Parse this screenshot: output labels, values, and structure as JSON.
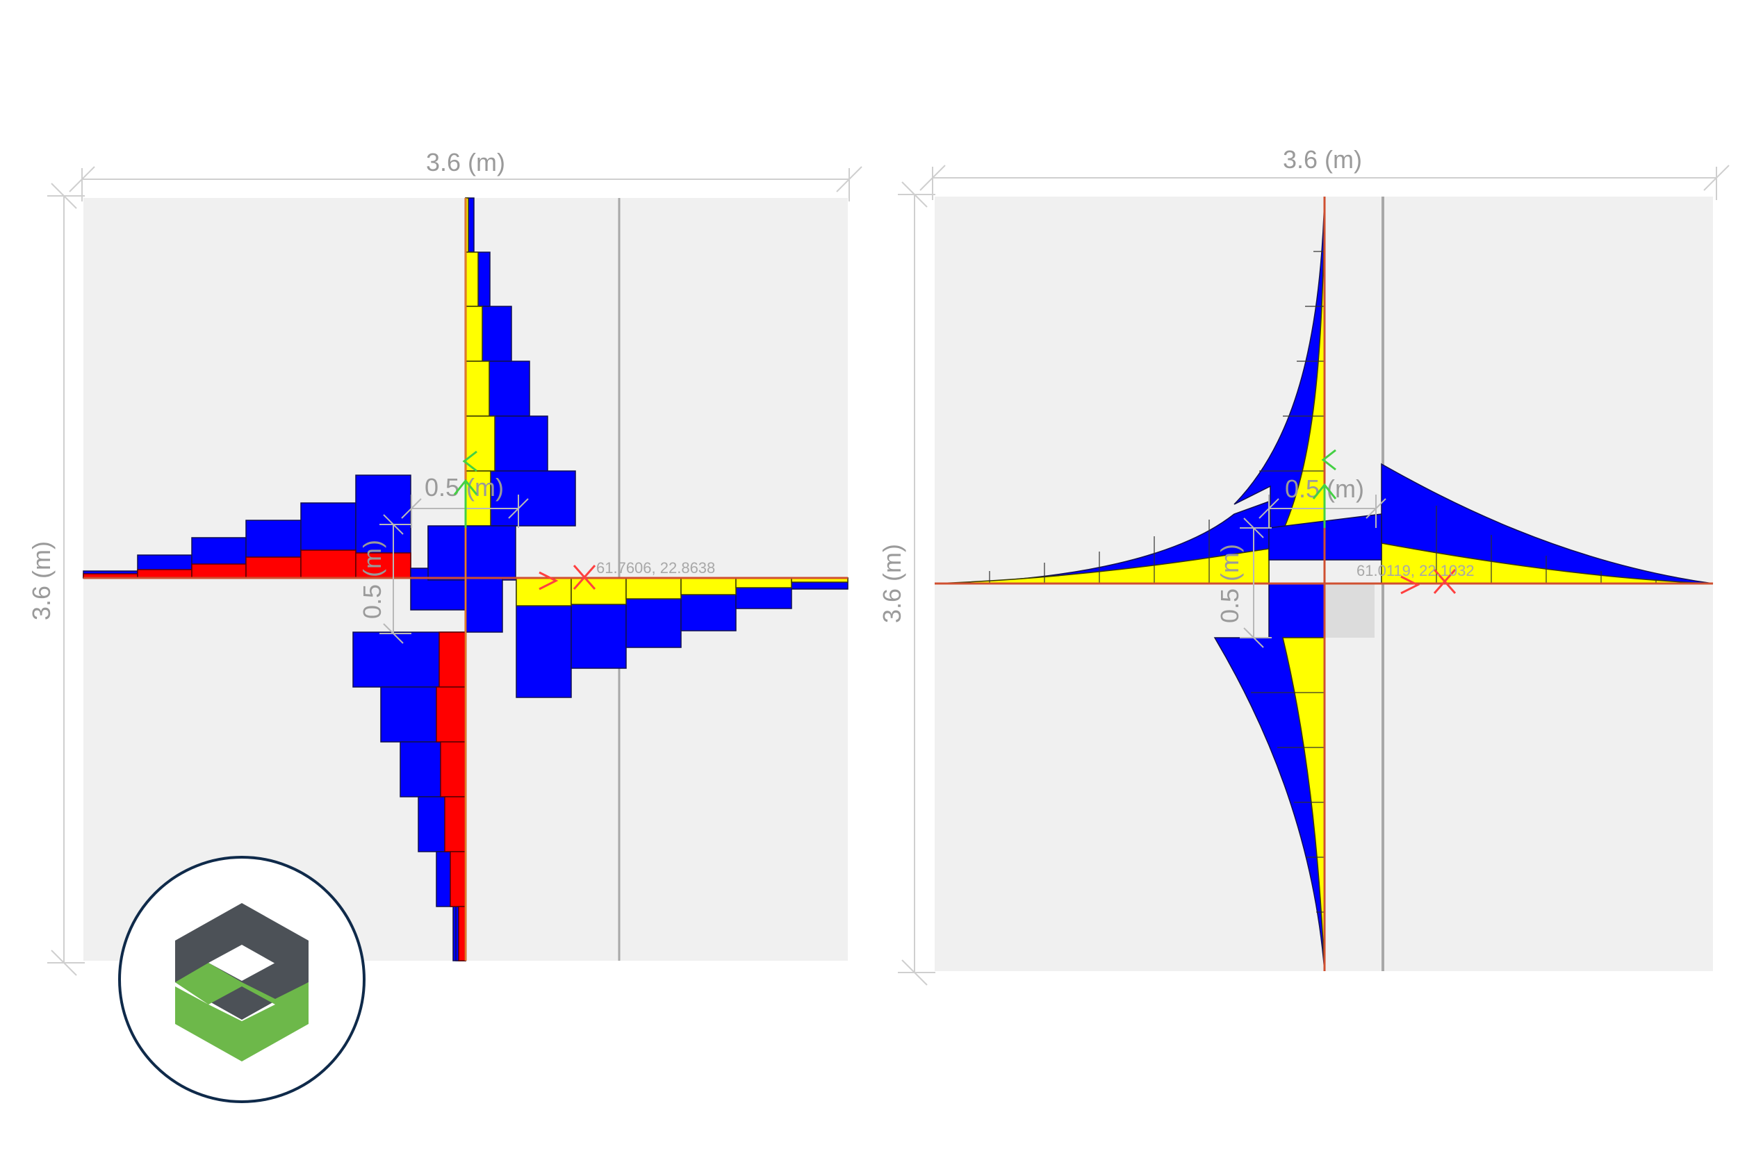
{
  "panels": [
    {
      "id": "left",
      "dim_top": "3.6 (m)",
      "dim_left": "3.6 (m)",
      "inner_dim_h": "0.5 (m)",
      "inner_dim_v": "0.5 (m)",
      "cursor_coords": "61.7606, 22.8638"
    },
    {
      "id": "right",
      "dim_top": "3.6 (m)",
      "dim_left": "3.6 (m)",
      "inner_dim_h": "0.5 (m)",
      "inner_dim_v": "0.5 (m)",
      "cursor_coords": "61.0119, 22.1032"
    }
  ],
  "colors": {
    "panel_bg": "#f0f0f0",
    "blue": "#0000ff",
    "yellow": "#ffff00",
    "red": "#ff0000",
    "axis_x": "#ff3030",
    "axis_y": "#30d030",
    "logo_dark": "#4c5157",
    "logo_green": "#6db84a",
    "logo_ring": "#0f2a4a"
  }
}
